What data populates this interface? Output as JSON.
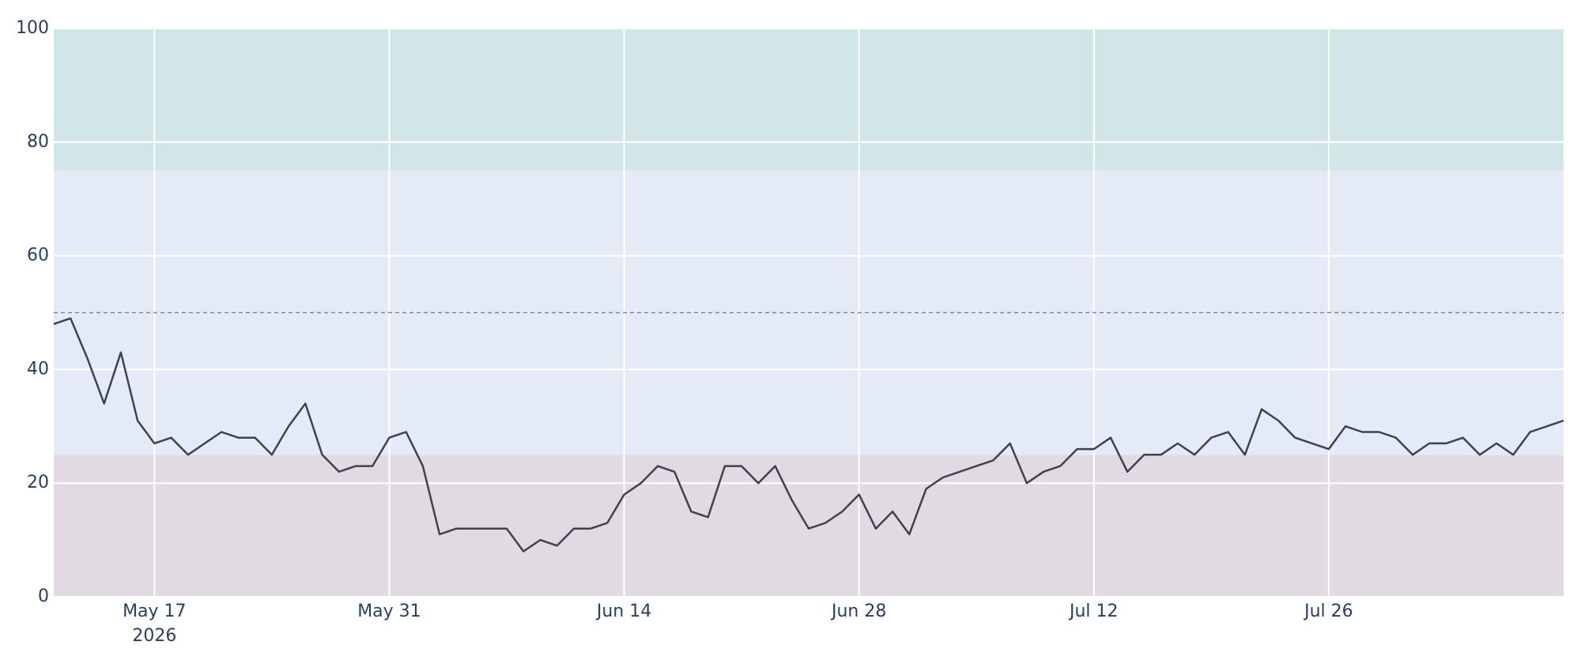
{
  "chart_data": {
    "type": "line",
    "x": [
      "2026-05-11",
      "2026-05-12",
      "2026-05-13",
      "2026-05-14",
      "2026-05-15",
      "2026-05-16",
      "2026-05-17",
      "2026-05-18",
      "2026-05-19",
      "2026-05-20",
      "2026-05-21",
      "2026-05-22",
      "2026-05-23",
      "2026-05-24",
      "2026-05-25",
      "2026-05-26",
      "2026-05-27",
      "2026-05-28",
      "2026-05-29",
      "2026-05-30",
      "2026-05-31",
      "2026-06-01",
      "2026-06-02",
      "2026-06-03",
      "2026-06-04",
      "2026-06-05",
      "2026-06-06",
      "2026-06-07",
      "2026-06-08",
      "2026-06-09",
      "2026-06-10",
      "2026-06-11",
      "2026-06-12",
      "2026-06-13",
      "2026-06-14",
      "2026-06-15",
      "2026-06-16",
      "2026-06-17",
      "2026-06-18",
      "2026-06-19",
      "2026-06-20",
      "2026-06-21",
      "2026-06-22",
      "2026-06-23",
      "2026-06-24",
      "2026-06-25",
      "2026-06-26",
      "2026-06-27",
      "2026-06-28",
      "2026-06-29",
      "2026-06-30",
      "2026-07-01",
      "2026-07-02",
      "2026-07-03",
      "2026-07-04",
      "2026-07-05",
      "2026-07-06",
      "2026-07-07",
      "2026-07-08",
      "2026-07-09",
      "2026-07-10",
      "2026-07-11",
      "2026-07-12",
      "2026-07-13",
      "2026-07-14",
      "2026-07-15",
      "2026-07-16",
      "2026-07-17",
      "2026-07-18",
      "2026-07-19",
      "2026-07-20",
      "2026-07-21",
      "2026-07-22",
      "2026-07-23",
      "2026-07-24",
      "2026-07-25",
      "2026-07-26",
      "2026-07-27",
      "2026-07-28",
      "2026-07-29",
      "2026-07-30",
      "2026-07-31",
      "2026-08-01",
      "2026-08-02",
      "2026-08-03",
      "2026-08-04",
      "2026-08-05",
      "2026-08-06",
      "2026-08-07",
      "2026-08-08",
      "2026-08-09"
    ],
    "values": [
      48,
      49,
      42,
      34,
      43,
      31,
      27,
      28,
      25,
      27,
      29,
      28,
      28,
      25,
      30,
      34,
      25,
      22,
      23,
      23,
      28,
      29,
      23,
      11,
      12,
      12,
      12,
      12,
      8,
      10,
      9,
      12,
      12,
      13,
      18,
      20,
      23,
      22,
      15,
      14,
      23,
      23,
      20,
      23,
      17,
      12,
      13,
      15,
      18,
      12,
      15,
      11,
      19,
      21,
      22,
      23,
      24,
      27,
      20,
      22,
      23,
      26,
      26,
      28,
      22,
      25,
      25,
      27,
      25,
      28,
      29,
      25,
      33,
      31,
      28,
      27,
      26,
      30,
      29,
      29,
      28,
      25,
      27,
      27,
      28,
      25,
      27,
      25,
      29,
      30,
      31
    ],
    "color": "#3d4250",
    "xlim": [
      "2026-05-11",
      "2026-08-09"
    ],
    "xticks": [
      {
        "value": "2026-05-17",
        "label": "May 17"
      },
      {
        "value": "2026-05-31",
        "label": "May 31"
      },
      {
        "value": "2026-06-14",
        "label": "Jun 14"
      },
      {
        "value": "2026-06-28",
        "label": "Jun 28"
      },
      {
        "value": "2026-07-12",
        "label": "Jul 12"
      },
      {
        "value": "2026-07-26",
        "label": "Jul 26"
      }
    ],
    "xtick_year": "2026",
    "ylim": [
      0,
      100
    ],
    "yticks": [
      0,
      20,
      40,
      60,
      80,
      100
    ],
    "grid": true,
    "bands": [
      {
        "from": 0,
        "to": 25,
        "color": "#e2dae3"
      },
      {
        "from": 25,
        "to": 75,
        "color": "#e5ebf6"
      },
      {
        "from": 75,
        "to": 100,
        "color": "#d2e5e7"
      }
    ],
    "reference_line": 50
  }
}
